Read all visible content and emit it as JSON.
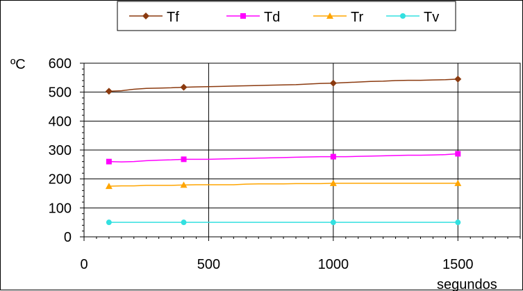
{
  "chart_data": {
    "type": "line",
    "title": "",
    "xlabel": "segundos",
    "ylabel": "ºC",
    "xlim": [
      0,
      1750
    ],
    "ylim": [
      0,
      600
    ],
    "x_ticks": [
      "0",
      "500",
      "1000",
      "1500"
    ],
    "y_ticks": [
      "0",
      "100",
      "200",
      "300",
      "400",
      "500",
      "600"
    ],
    "legend_position": "top",
    "grid": true,
    "series": [
      {
        "name": "Tf",
        "color": "#8B3A0F",
        "marker": "diamond",
        "x": [
          100,
          150,
          200,
          250,
          300,
          350,
          400,
          450,
          500,
          550,
          600,
          650,
          700,
          750,
          800,
          850,
          900,
          950,
          1000,
          1050,
          1100,
          1150,
          1200,
          1250,
          1300,
          1350,
          1400,
          1450,
          1500
        ],
        "values": [
          503,
          505,
          510,
          513,
          514,
          515,
          517,
          518,
          519,
          520,
          521,
          522,
          523,
          524,
          525,
          526,
          528,
          530,
          531,
          533,
          535,
          537,
          538,
          540,
          541,
          541,
          542,
          543,
          545
        ]
      },
      {
        "name": "Td",
        "color": "#FF00FF",
        "marker": "square",
        "x": [
          100,
          150,
          200,
          250,
          300,
          350,
          400,
          450,
          500,
          550,
          600,
          650,
          700,
          750,
          800,
          850,
          900,
          950,
          1000,
          1050,
          1100,
          1150,
          1200,
          1250,
          1300,
          1350,
          1400,
          1450,
          1500
        ],
        "values": [
          260,
          259,
          260,
          263,
          265,
          266,
          268,
          268,
          268,
          269,
          270,
          271,
          272,
          273,
          274,
          275,
          276,
          277,
          277,
          277,
          278,
          279,
          280,
          281,
          282,
          282,
          283,
          284,
          287
        ]
      },
      {
        "name": "Tr",
        "color": "#FFA500",
        "marker": "triangle",
        "x": [
          100,
          150,
          200,
          250,
          300,
          350,
          400,
          450,
          500,
          550,
          600,
          650,
          700,
          750,
          800,
          850,
          900,
          950,
          1000,
          1050,
          1100,
          1150,
          1200,
          1250,
          1300,
          1350,
          1400,
          1450,
          1500
        ],
        "values": [
          175,
          176,
          176,
          178,
          178,
          178,
          179,
          180,
          180,
          180,
          180,
          182,
          183,
          183,
          183,
          184,
          184,
          184,
          185,
          185,
          185,
          185,
          185,
          185,
          185,
          185,
          185,
          185,
          185
        ]
      },
      {
        "name": "Tv",
        "color": "#33E0E0",
        "marker": "circle",
        "x": [
          100,
          400,
          1000,
          1500
        ],
        "values": [
          50,
          50,
          50,
          50
        ]
      }
    ]
  }
}
